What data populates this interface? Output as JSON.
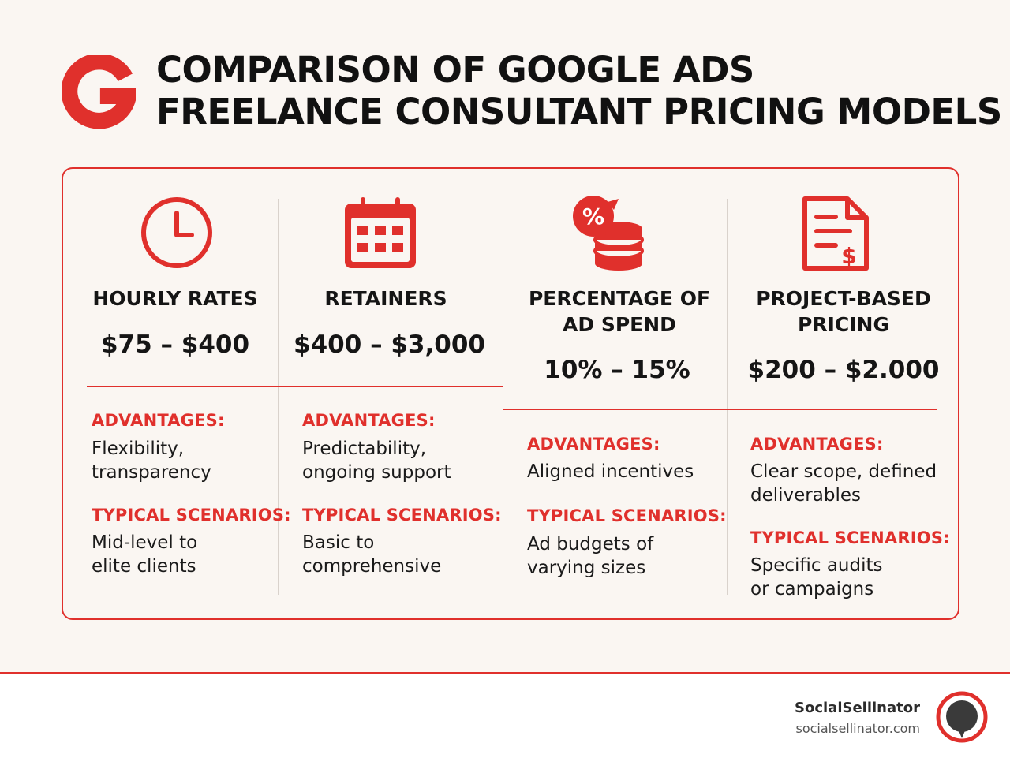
{
  "title": {
    "line1": "COMPARISON OF GOOGLE ADS",
    "line2": "FREELANCE CONSULTANT PRICING MODELS"
  },
  "colors": {
    "accent": "#e0302c",
    "background": "#faf6f2",
    "text": "#151515"
  },
  "logo_letter": "G",
  "models": [
    {
      "icon": "clock-icon",
      "name": "HOURLY RATES",
      "price": "$75 – $400",
      "advantages_label": "ADVANTAGES:",
      "advantages": [
        "Flexibility,",
        "transparency"
      ],
      "scenarios_label": "TYPICAL SCENARIOS:",
      "scenarios": [
        "Mid-level to",
        "elite clients"
      ]
    },
    {
      "icon": "calendar-icon",
      "name": "RETAINERS",
      "price": "$400 – $3,000",
      "advantages_label": "ADVANTAGES:",
      "advantages": [
        "Predictability,",
        "ongoing support"
      ],
      "scenarios_label": "TYPICAL SCENARIOS:",
      "scenarios": [
        "Basic to",
        "comprehensive"
      ]
    },
    {
      "icon": "percent-coins-icon",
      "name_lines": [
        "PERCENTAGE OF",
        "AD SPEND"
      ],
      "price": "10% – 15%",
      "advantages_label": "ADVANTAGES:",
      "advantages": [
        "Aligned incentives"
      ],
      "scenarios_label": "TYPICAL SCENARIOS:",
      "scenarios": [
        "Ad budgets of",
        "varying sizes"
      ]
    },
    {
      "icon": "invoice-dollar-icon",
      "name_lines": [
        "PROJECT-BASED",
        "PRICING"
      ],
      "price": "$200 – $2.000",
      "advantages_label": "ADVANTAGES:",
      "advantages": [
        "Clear scope, defined",
        "deliverables"
      ],
      "scenarios_label": "TYPICAL SCENARIOS:",
      "scenarios": [
        "Specific audits",
        "or campaigns"
      ]
    }
  ],
  "footer": {
    "brand": "SocialSellinator",
    "url": "socialsellinator.com"
  }
}
